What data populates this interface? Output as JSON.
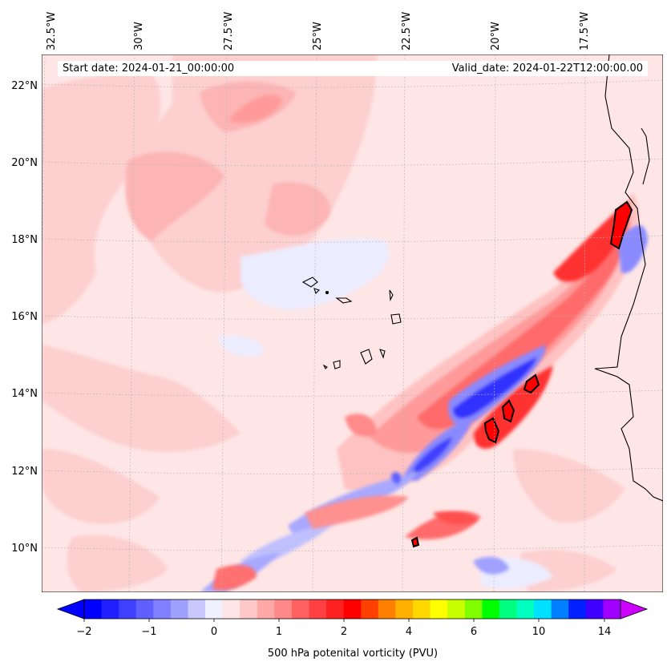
{
  "map": {
    "start_date_label": "Start date: 2024-01-21_00:00:00",
    "valid_date_label": "Valid_date: 2024-01-22T12:00:00.00",
    "lon_labels": [
      "32.5°W",
      "30°W",
      "27.5°W",
      "25°W",
      "22.5°W",
      "20°W",
      "17.5°W"
    ],
    "lat_labels": [
      "22°N",
      "20°N",
      "18°N",
      "16°N",
      "14°N",
      "12°N",
      "10°N"
    ],
    "extent": {
      "lon_min": -33.0,
      "lon_max": -15.5,
      "lat_min": 8.8,
      "lat_max": 22.8
    },
    "background_color": "#fee6e6"
  },
  "colorbar": {
    "title": "500 hPa potenital vorticity (PVU)",
    "tick_labels": [
      "−2",
      "−1",
      "0",
      "1",
      "2",
      "4",
      "6",
      "10",
      "14"
    ],
    "colors": [
      "#0000ff",
      "#2020ff",
      "#4040ff",
      "#6060ff",
      "#8080ff",
      "#a0a0ff",
      "#c8c8ff",
      "#f0f0ff",
      "#ffe6e6",
      "#ffc8c8",
      "#ffa8a8",
      "#ff8888",
      "#ff6060",
      "#ff4040",
      "#ff2020",
      "#ff0000",
      "#ff4000",
      "#ff8000",
      "#ffb000",
      "#ffd800",
      "#ffff00",
      "#c8ff00",
      "#80ff00",
      "#00ff00",
      "#00ff80",
      "#00ffc0",
      "#00e0ff",
      "#0080ff",
      "#0020ff",
      "#4000ff",
      "#a000ff"
    ],
    "under_color": "#0000ff",
    "over_color": "#cc00ff"
  }
}
